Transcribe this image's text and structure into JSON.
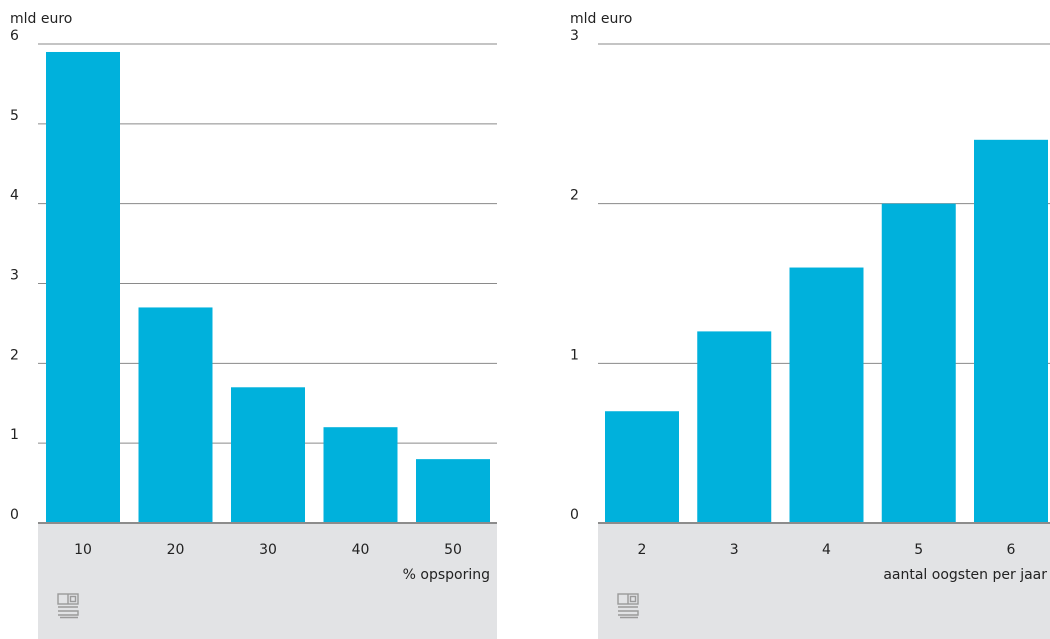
{
  "chart_data": [
    {
      "type": "bar",
      "ylabel": "mld euro",
      "xlabel": "% opsporing",
      "categories": [
        "10",
        "20",
        "30",
        "40",
        "50"
      ],
      "values": [
        5.9,
        2.7,
        1.7,
        1.2,
        0.8
      ],
      "ylim": [
        0,
        6
      ],
      "yticks": [
        "0",
        "1",
        "2",
        "3",
        "4",
        "5",
        "6"
      ],
      "grid": true,
      "bar_color": "#00b1dc"
    },
    {
      "type": "bar",
      "ylabel": "mld euro",
      "xlabel": "aantal oogsten per jaar",
      "categories": [
        "2",
        "3",
        "4",
        "5",
        "6"
      ],
      "values": [
        0.7,
        1.2,
        1.6,
        2.0,
        2.4
      ],
      "ylim": [
        0,
        3
      ],
      "yticks": [
        "0",
        "1",
        "2",
        "3"
      ],
      "grid": true,
      "bar_color": "#00b1dc"
    }
  ],
  "logo": "cbs-logo"
}
